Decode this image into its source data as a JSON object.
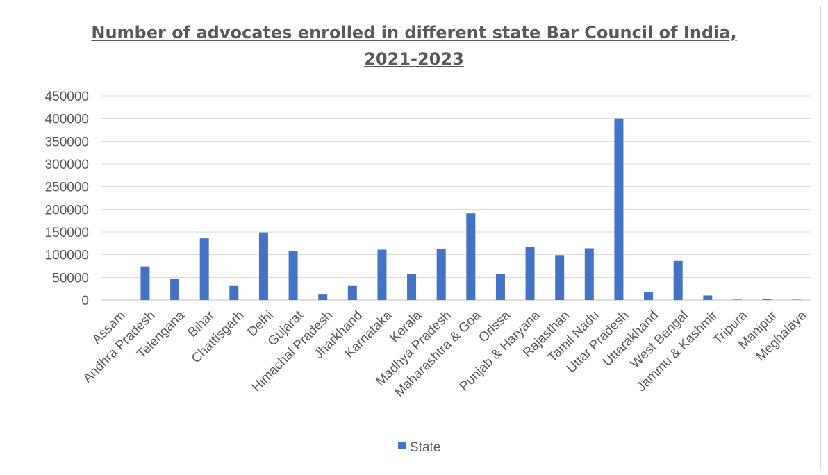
{
  "chart_data": {
    "type": "bar",
    "title_lines": [
      "Number of advocates enrolled in different state Bar Council of India,",
      "2021-2023"
    ],
    "categories": [
      "Assam",
      "Andhra Pradesh",
      "Telengana",
      "Bihar",
      "Chattisgarh",
      "Delhi",
      "Gujarat",
      "Himachal Pradesh",
      "Jharkhand",
      "Karnataka",
      "Kerala",
      "Madhya Pradesh",
      "Maharashtra & Goa",
      "Orissa",
      "Punjab & Haryana",
      "Rajasthan",
      "Tamil Nadu",
      "Uttar Pradesh",
      "Uttarakhand",
      "West Bengal",
      "Jammu & Kashmir",
      "Tripura",
      "Manipur",
      "Meghalaya"
    ],
    "series": [
      {
        "name": "State",
        "color": "#4472c4",
        "values": [
          0,
          74000,
          46000,
          136000,
          31000,
          149000,
          108000,
          12000,
          31000,
          111000,
          58000,
          112000,
          191000,
          58000,
          117000,
          99000,
          114000,
          400000,
          18000,
          86000,
          10000,
          1000,
          1500,
          900
        ]
      }
    ],
    "ylim": [
      0,
      450000
    ],
    "yticks": [
      0,
      50000,
      100000,
      150000,
      200000,
      250000,
      300000,
      350000,
      400000,
      450000
    ],
    "grid": true,
    "legend_position": "bottom"
  }
}
